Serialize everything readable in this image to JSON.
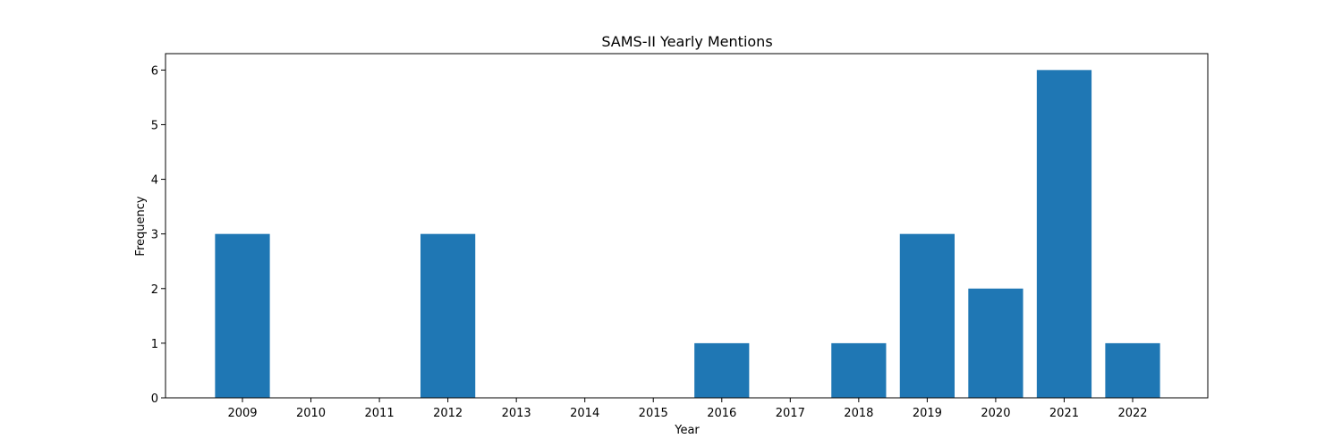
{
  "chart_data": {
    "type": "bar",
    "title": "SAMS-II Yearly Mentions",
    "xlabel": "Year",
    "ylabel": "Frequency",
    "categories": [
      "2009",
      "2010",
      "2011",
      "2012",
      "2013",
      "2014",
      "2015",
      "2016",
      "2017",
      "2018",
      "2019",
      "2020",
      "2021",
      "2022"
    ],
    "values": [
      3,
      0,
      0,
      3,
      0,
      0,
      0,
      1,
      0,
      1,
      3,
      2,
      6,
      1
    ],
    "ylim": [
      0,
      6.3
    ],
    "yticks": [
      "0",
      "1",
      "2",
      "3",
      "4",
      "5",
      "6"
    ],
    "grid": false,
    "bar_color": "#1f77b4"
  }
}
